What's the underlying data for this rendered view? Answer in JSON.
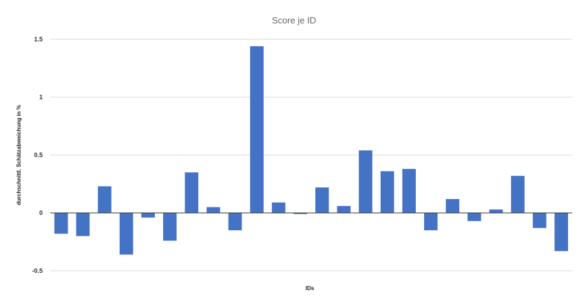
{
  "chart_data": {
    "type": "bar",
    "title": "Score je ID",
    "xlabel": "IDs",
    "ylabel": "durchschnittl. Schätzabweichung in %",
    "ylim": [
      -0.5,
      1.5
    ],
    "yticks": [
      {
        "value": 1.5,
        "label": "1.5"
      },
      {
        "value": 1,
        "label": "1"
      },
      {
        "value": 0.5,
        "label": "0.5"
      },
      {
        "value": 0,
        "label": "0"
      },
      {
        "value": -0.5,
        "label": "-0.5"
      }
    ],
    "grid": true,
    "legend": "none",
    "color": "#4472c4",
    "values": [
      -0.18,
      -0.2,
      0.23,
      -0.36,
      -0.04,
      -0.24,
      0.35,
      0.05,
      -0.15,
      1.44,
      0.09,
      -0.01,
      0.22,
      0.06,
      0.54,
      0.36,
      0.38,
      -0.15,
      0.12,
      -0.07,
      0.03,
      0.32,
      -0.13,
      -0.33
    ]
  }
}
